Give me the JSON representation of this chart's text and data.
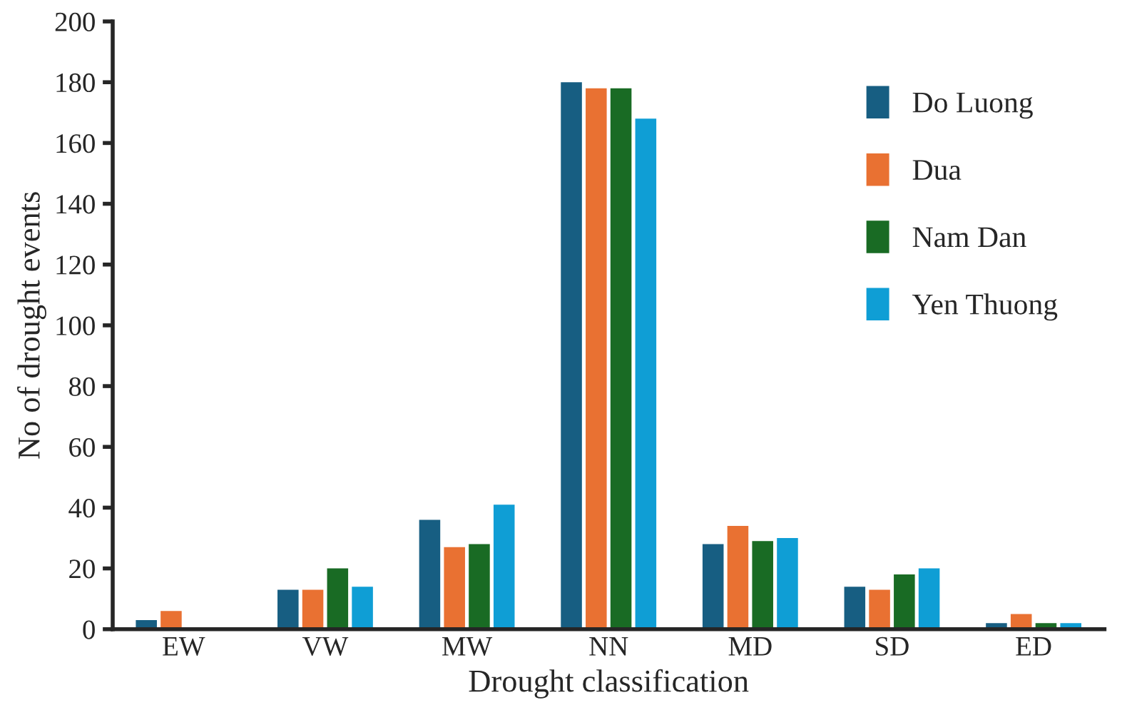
{
  "chart_data": {
    "type": "bar",
    "xlabel": "Drought classification",
    "ylabel": "No of drought events",
    "categories": [
      "EW",
      "VW",
      "MW",
      "NN",
      "MD",
      "SD",
      "ED"
    ],
    "series": [
      {
        "name": "Do Luong",
        "color": "#175e82",
        "values": [
          3,
          13,
          36,
          180,
          28,
          14,
          2
        ]
      },
      {
        "name": "Dua",
        "color": "#e97132",
        "values": [
          6,
          13,
          27,
          178,
          34,
          13,
          5
        ]
      },
      {
        "name": "Nam Dan",
        "color": "#196b24",
        "values": [
          null,
          20,
          28,
          178,
          29,
          18,
          2
        ]
      },
      {
        "name": "Yen Thuong",
        "color": "#0f9ed5",
        "values": [
          null,
          14,
          41,
          168,
          30,
          20,
          2
        ]
      }
    ],
    "ylim": [
      0,
      200
    ],
    "yticks": [
      0,
      20,
      40,
      60,
      80,
      100,
      120,
      140,
      160,
      180,
      200
    ],
    "grid": false,
    "legend": "right"
  }
}
